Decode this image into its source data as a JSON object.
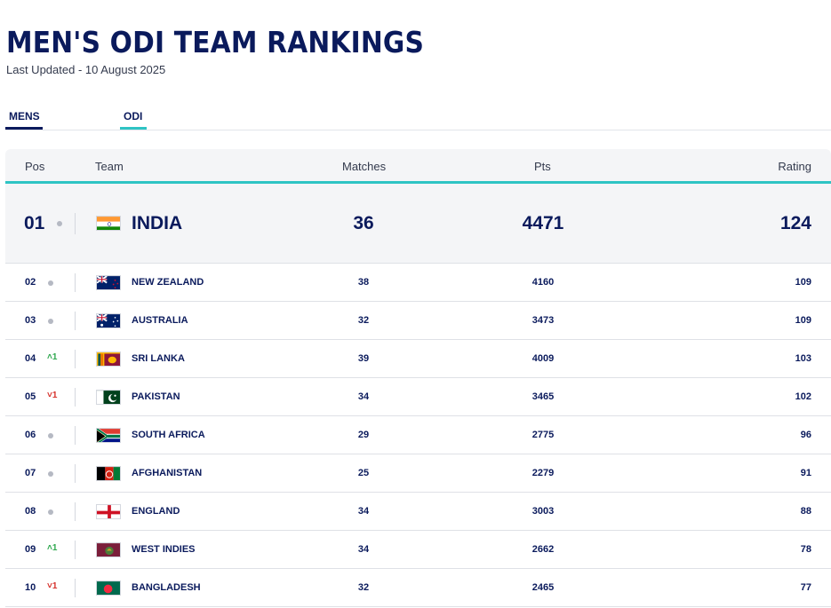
{
  "header": {
    "title": "MEN'S ODI TEAM RANKINGS",
    "last_updated": "Last Updated - 10 August 2025"
  },
  "tabs": [
    {
      "label": "MENS",
      "active": true
    },
    {
      "label": "ODI",
      "active": true
    }
  ],
  "table": {
    "columns": {
      "pos": "Pos",
      "team": "Team",
      "matches": "Matches",
      "pts": "Pts",
      "rating": "Rating"
    },
    "rows": [
      {
        "pos": "01",
        "move": "",
        "dir": "none",
        "team": "INDIA",
        "flag": "india",
        "matches": "36",
        "pts": "4471",
        "rating": "124"
      },
      {
        "pos": "02",
        "move": "",
        "dir": "none",
        "team": "NEW ZEALAND",
        "flag": "new-zealand",
        "matches": "38",
        "pts": "4160",
        "rating": "109"
      },
      {
        "pos": "03",
        "move": "",
        "dir": "none",
        "team": "AUSTRALIA",
        "flag": "australia",
        "matches": "32",
        "pts": "3473",
        "rating": "109"
      },
      {
        "pos": "04",
        "move": "1",
        "dir": "up",
        "team": "SRI LANKA",
        "flag": "sri-lanka",
        "matches": "39",
        "pts": "4009",
        "rating": "103"
      },
      {
        "pos": "05",
        "move": "1",
        "dir": "down",
        "team": "PAKISTAN",
        "flag": "pakistan",
        "matches": "34",
        "pts": "3465",
        "rating": "102"
      },
      {
        "pos": "06",
        "move": "",
        "dir": "none",
        "team": "SOUTH AFRICA",
        "flag": "south-africa",
        "matches": "29",
        "pts": "2775",
        "rating": "96"
      },
      {
        "pos": "07",
        "move": "",
        "dir": "none",
        "team": "AFGHANISTAN",
        "flag": "afghanistan",
        "matches": "25",
        "pts": "2279",
        "rating": "91"
      },
      {
        "pos": "08",
        "move": "",
        "dir": "none",
        "team": "ENGLAND",
        "flag": "england",
        "matches": "34",
        "pts": "3003",
        "rating": "88"
      },
      {
        "pos": "09",
        "move": "1",
        "dir": "up",
        "team": "WEST INDIES",
        "flag": "west-indies",
        "matches": "34",
        "pts": "2662",
        "rating": "78"
      },
      {
        "pos": "10",
        "move": "1",
        "dir": "down",
        "team": "BANGLADESH",
        "flag": "bangladesh",
        "matches": "32",
        "pts": "2465",
        "rating": "77"
      }
    ]
  },
  "colors": {
    "navy": "#0a1a5c",
    "teal": "#2ec4c4",
    "up": "#2fa84f",
    "down": "#d6312b"
  }
}
